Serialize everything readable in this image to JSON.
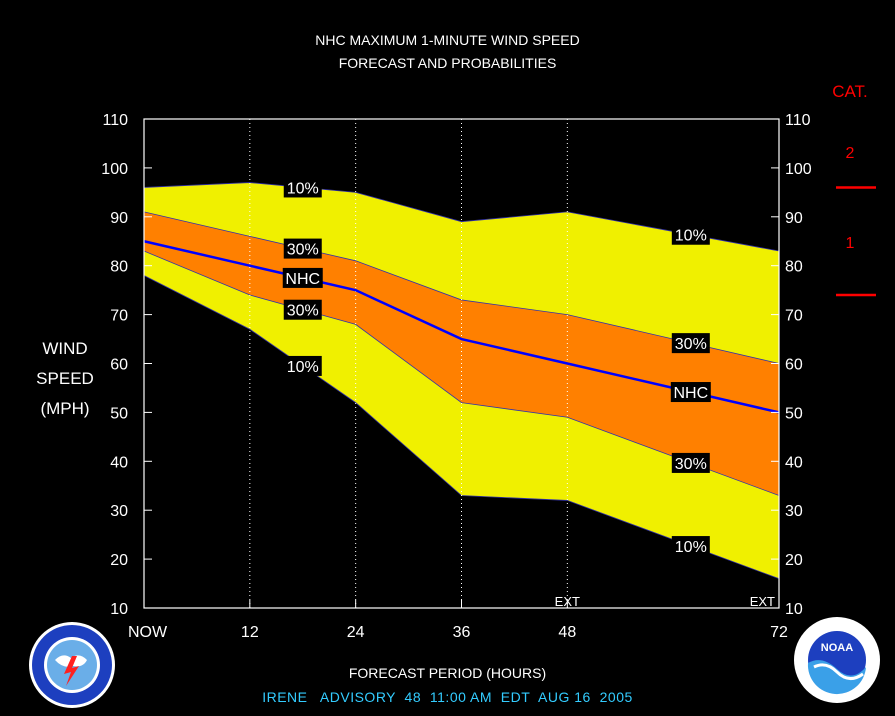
{
  "chart_data": {
    "type": "area",
    "title_line1": "NHC MAXIMUM 1-MINUTE WIND SPEED",
    "title_line2": "FORECAST AND PROBABILITIES",
    "ylabel_lines": [
      "WIND",
      "SPEED",
      "(MPH)"
    ],
    "xlabel": "FORECAST PERIOD (HOURS)",
    "x_tick_labels": [
      "NOW",
      "12",
      "24",
      "36",
      "48",
      "72"
    ],
    "x_tick_values": [
      0,
      12,
      24,
      36,
      48,
      72
    ],
    "y_ticks": [
      "10",
      "20",
      "30",
      "40",
      "50",
      "60",
      "70",
      "80",
      "90",
      "100",
      "110"
    ],
    "xlim": [
      0,
      72
    ],
    "ylim": [
      10,
      110
    ],
    "x": [
      0,
      12,
      24,
      36,
      48,
      72
    ],
    "series": [
      {
        "name": "10%",
        "values": [
          96,
          97,
          95,
          89,
          91,
          83
        ]
      },
      {
        "name": "30%",
        "values": [
          91,
          86,
          81,
          73,
          70,
          60
        ]
      },
      {
        "name": "NHC",
        "values": [
          85,
          80,
          75,
          65,
          60,
          50
        ]
      },
      {
        "name": "30%",
        "values": [
          83,
          74,
          68,
          52,
          49,
          33
        ]
      },
      {
        "name": "10%",
        "values": [
          78,
          67,
          52,
          33,
          32,
          16
        ]
      }
    ],
    "ext_labels": [
      "EXT",
      "EXT"
    ],
    "category": {
      "title": "CAT.",
      "labels": [
        "2",
        "1"
      ],
      "thresholds": [
        96,
        74
      ]
    },
    "colors": {
      "outer_band": "#f0f000",
      "inner_band": "#ff8000",
      "nhc_line": "#0000ff",
      "category": "#ff0000",
      "footer": "#33ccff"
    }
  },
  "footer": {
    "storm": "IRENE",
    "advisory": "ADVISORY  48  11:00 AM  EDT  AUG 16  2005"
  }
}
